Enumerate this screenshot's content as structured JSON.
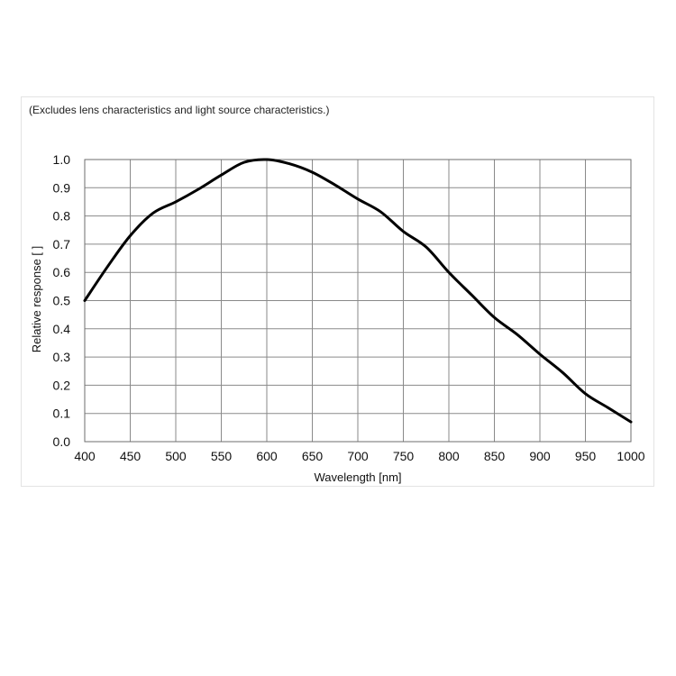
{
  "chart_data": {
    "type": "line",
    "note": "(Excludes lens characteristics and light source characteristics.)",
    "xlabel": "Wavelength [nm]",
    "ylabel": "Relative response [ ]",
    "xlim": [
      400,
      1000
    ],
    "ylim": [
      0.0,
      1.0
    ],
    "x_ticks": [
      "400",
      "450",
      "500",
      "550",
      "600",
      "650",
      "700",
      "750",
      "800",
      "850",
      "900",
      "950",
      "1000"
    ],
    "y_ticks": [
      "0.0",
      "0.1",
      "0.2",
      "0.3",
      "0.4",
      "0.5",
      "0.6",
      "0.7",
      "0.8",
      "0.9",
      "1.0"
    ],
    "grid": true,
    "colors": {
      "line": "#000000",
      "grid": "#8a8a8a"
    },
    "series": [
      {
        "x": [
          400,
          425,
          450,
          475,
          500,
          525,
          550,
          575,
          600,
          625,
          650,
          675,
          700,
          725,
          750,
          775,
          800,
          825,
          850,
          875,
          900,
          925,
          950,
          975,
          1000
        ],
        "y": [
          0.5,
          0.62,
          0.73,
          0.81,
          0.85,
          0.895,
          0.945,
          0.99,
          1.0,
          0.985,
          0.955,
          0.91,
          0.86,
          0.815,
          0.745,
          0.69,
          0.6,
          0.52,
          0.44,
          0.38,
          0.31,
          0.245,
          0.17,
          0.12,
          0.07
        ]
      }
    ]
  }
}
